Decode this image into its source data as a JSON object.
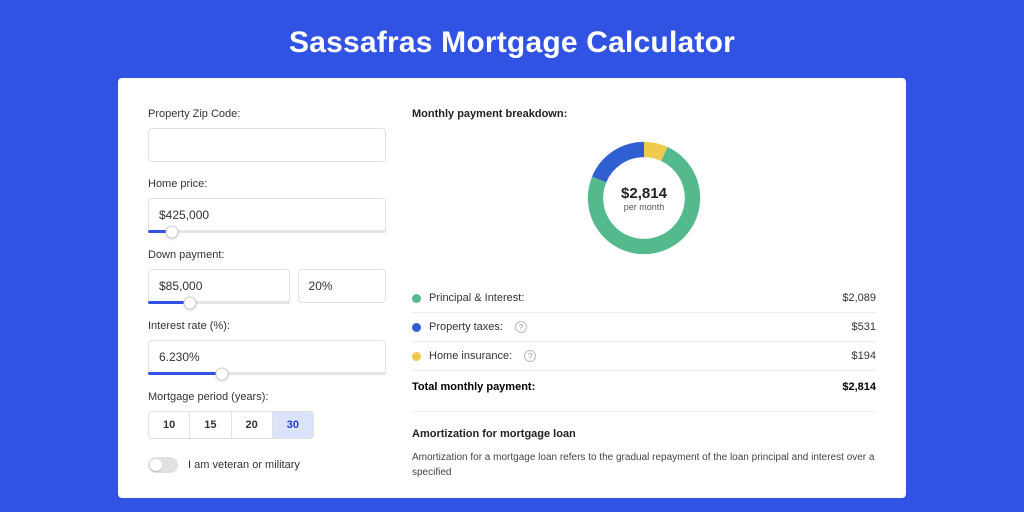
{
  "page": {
    "title": "Sassafras Mortgage Calculator"
  },
  "accent": "#3153e4",
  "form": {
    "zip": {
      "label": "Property Zip Code:",
      "value": ""
    },
    "home_price": {
      "label": "Home price:",
      "value": "$425,000",
      "slider_fill_pct": 10,
      "slider_thumb_pct": 10
    },
    "down_payment": {
      "label": "Down payment:",
      "value": "$85,000",
      "pct": "20%",
      "slider_fill_pct": 30,
      "slider_thumb_pct": 30
    },
    "interest": {
      "label": "Interest rate (%):",
      "value": "6.230%",
      "slider_fill_pct": 31,
      "slider_thumb_pct": 31
    },
    "period": {
      "label": "Mortgage period (years):",
      "options": [
        "10",
        "15",
        "20",
        "30"
      ],
      "active": "30"
    },
    "veteran": {
      "label": "I am veteran or military",
      "checked": false
    }
  },
  "breakdown": {
    "title": "Monthly payment breakdown:",
    "donut": {
      "center_value": "$2,814",
      "center_sub": "per month",
      "segments": [
        {
          "name": "home-insurance",
          "color": "#f0ca4d",
          "pct": 6.89
        },
        {
          "name": "principal-interest",
          "color": "#54b98c",
          "pct": 74.24
        },
        {
          "name": "property-taxes",
          "color": "#2f5fd0",
          "pct": 18.87
        }
      ],
      "ring_thickness_pct": 24
    },
    "legend": [
      {
        "color": "#54b98c",
        "label": "Principal & Interest:",
        "value": "$2,089",
        "help": false
      },
      {
        "color": "#2f5fd0",
        "label": "Property taxes:",
        "value": "$531",
        "help": true
      },
      {
        "color": "#f0ca4d",
        "label": "Home insurance:",
        "value": "$194",
        "help": true
      }
    ],
    "total": {
      "label": "Total monthly payment:",
      "value": "$2,814"
    }
  },
  "amortization": {
    "heading": "Amortization for mortgage loan",
    "body": "Amortization for a mortgage loan refers to the gradual repayment of the loan principal and interest over a specified"
  }
}
